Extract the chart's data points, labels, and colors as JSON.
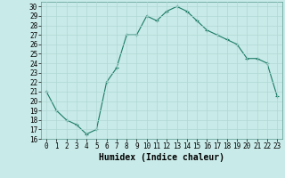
{
  "x": [
    0,
    1,
    2,
    3,
    4,
    5,
    6,
    7,
    8,
    9,
    10,
    11,
    12,
    13,
    14,
    15,
    16,
    17,
    18,
    19,
    20,
    21,
    22,
    23
  ],
  "y": [
    21,
    19,
    18,
    17.5,
    16.5,
    17,
    22,
    23.5,
    27,
    27,
    29,
    28.5,
    29.5,
    30,
    29.5,
    28.5,
    27.5,
    27,
    26.5,
    26,
    24.5,
    24.5,
    24,
    20.5
  ],
  "line_color": "#1a7a65",
  "marker": "+",
  "marker_color": "#1a7a65",
  "bg_color": "#c8eae8",
  "grid_color": "#b0d8d4",
  "xlabel": "Humidex (Indice chaleur)",
  "ylim": [
    16,
    30.5
  ],
  "xlim": [
    -0.5,
    23.5
  ],
  "yticks": [
    16,
    17,
    18,
    19,
    20,
    21,
    22,
    23,
    24,
    25,
    26,
    27,
    28,
    29,
    30
  ],
  "xticks": [
    0,
    1,
    2,
    3,
    4,
    5,
    6,
    7,
    8,
    9,
    10,
    11,
    12,
    13,
    14,
    15,
    16,
    17,
    18,
    19,
    20,
    21,
    22,
    23
  ],
  "tick_fontsize": 5.5,
  "label_fontsize": 7
}
